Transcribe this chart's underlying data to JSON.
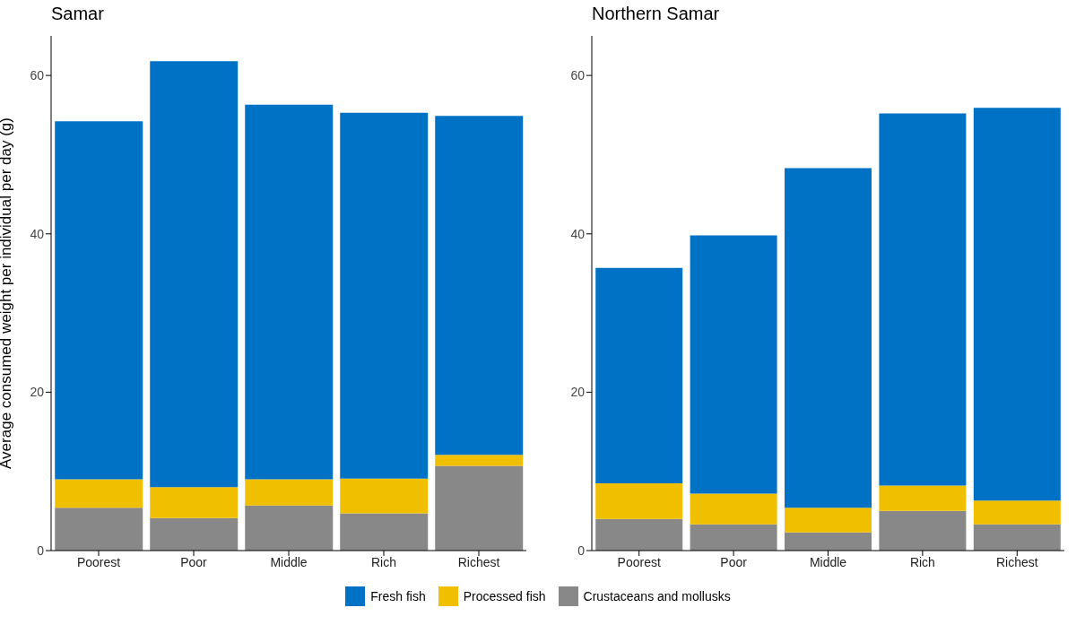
{
  "chart_data": [
    {
      "type": "bar",
      "title": "Samar",
      "ylabel": "Average consumed weight per individual per day (g)",
      "categories": [
        "Poorest",
        "Poor",
        "Middle",
        "Rich",
        "Richest"
      ],
      "stacked": true,
      "ylim": [
        0,
        65
      ],
      "yticks": [
        0,
        20,
        40,
        60
      ],
      "legend": "bottom",
      "series": [
        {
          "name": "Crustaceans and mollusks",
          "color": "#888888",
          "values": [
            5.4,
            4.1,
            5.7,
            4.7,
            10.7
          ]
        },
        {
          "name": "Processed fish",
          "color": "#efbf00",
          "values": [
            3.6,
            3.9,
            3.3,
            4.4,
            1.4
          ]
        },
        {
          "name": "Fresh fish",
          "color": "#0072c6",
          "values": [
            45.2,
            53.8,
            47.3,
            46.2,
            42.8
          ]
        }
      ]
    },
    {
      "type": "bar",
      "title": "Northern Samar",
      "categories": [
        "Poorest",
        "Poor",
        "Middle",
        "Rich",
        "Richest"
      ],
      "stacked": true,
      "ylim": [
        0,
        65
      ],
      "yticks": [
        0,
        20,
        40,
        60
      ],
      "series": [
        {
          "color": "#888888",
          "values": [
            4.0,
            3.3,
            2.3,
            5.0,
            3.3
          ]
        },
        {
          "color": "#efbf00",
          "values": [
            4.5,
            3.9,
            3.1,
            3.2,
            3.0
          ]
        },
        {
          "color": "#0072c6",
          "values": [
            27.2,
            32.6,
            42.9,
            47.0,
            49.6
          ]
        }
      ]
    }
  ]
}
